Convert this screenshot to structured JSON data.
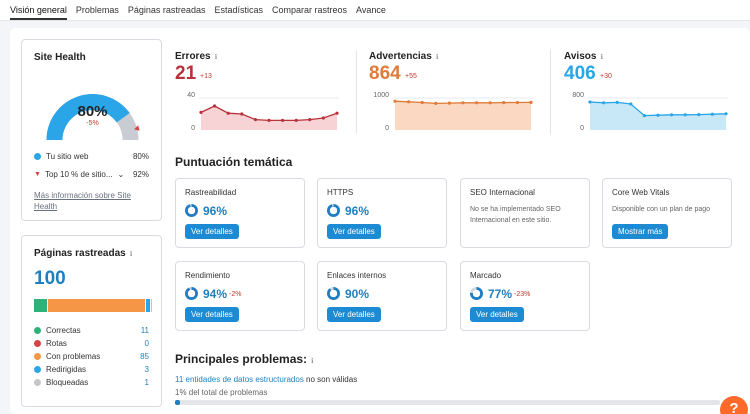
{
  "tabs": [
    "Visión general",
    "Problemas",
    "Páginas rastreadas",
    "Estadísticas",
    "Comparar rastreos",
    "Avance"
  ],
  "site_health": {
    "title": "Site Health",
    "score": "80%",
    "delta": "-5%",
    "score_fraction": 0.8,
    "top10_fraction": 0.92,
    "legend": [
      {
        "label": "Tu sitio web",
        "value": "80%",
        "color": "#2aa6e8"
      },
      {
        "label": "Top 10 % de sitio...",
        "value": "92%",
        "color": "#d64545"
      }
    ],
    "more_link": "Más información sobre Site Health"
  },
  "crawled": {
    "title": "Páginas rastreadas",
    "total": "100",
    "bar_fractions": [
      0.11,
      0.0,
      0.85,
      0.03,
      0.01
    ],
    "items": [
      {
        "label": "Correctas",
        "value": "11",
        "color": "#2db37a"
      },
      {
        "label": "Rotas",
        "value": "0",
        "color": "#d64545"
      },
      {
        "label": "Con problemas",
        "value": "85",
        "color": "#f49645"
      },
      {
        "label": "Redirigidas",
        "value": "3",
        "color": "#2aa6e8"
      },
      {
        "label": "Bloqueadas",
        "value": "1",
        "color": "#c4c6cc"
      }
    ]
  },
  "metrics": [
    {
      "label": "Errores",
      "value": "21",
      "delta": "+13",
      "color": "#b8323c",
      "fill": "#f7d3d6",
      "ymax": "40",
      "ymin": "0",
      "series": [
        22,
        30,
        21,
        20,
        13,
        12,
        12,
        12,
        13,
        15,
        21
      ]
    },
    {
      "label": "Advertencias",
      "value": "864",
      "delta": "+55",
      "color": "#e07b39",
      "fill": "#fbd8c1",
      "ymax": "1000",
      "ymin": "0",
      "series": [
        900,
        880,
        860,
        830,
        840,
        850,
        850,
        850,
        855,
        860,
        864
      ]
    },
    {
      "label": "Avisos",
      "value": "406",
      "delta": "+30",
      "color": "#2aa6e8",
      "fill": "#c8e8f7",
      "ymax": "800",
      "ymin": "0",
      "series": [
        700,
        680,
        690,
        650,
        360,
        370,
        380,
        380,
        385,
        395,
        406
      ]
    }
  ],
  "thematic_title": "Puntuación temática",
  "thematic": [
    {
      "title": "Rastreabilidad",
      "pct": "96%",
      "frac": 0.96,
      "delta": "",
      "desc": "",
      "button": "Ver detalles"
    },
    {
      "title": "HTTPS",
      "pct": "96%",
      "frac": 0.96,
      "delta": "",
      "desc": "",
      "button": "Ver detalles"
    },
    {
      "title": "SEO Internacional",
      "pct": "",
      "frac": 0,
      "delta": "",
      "desc": "No se ha implementado SEO Internacional en este sitio.",
      "button": ""
    },
    {
      "title": "Core Web Vitals",
      "pct": "",
      "frac": 0,
      "delta": "",
      "desc": "Disponible con un plan de pago",
      "button": "Mostrar más"
    },
    {
      "title": "Rendimiento",
      "pct": "94%",
      "frac": 0.94,
      "delta": "-2%",
      "desc": "",
      "button": "Ver detalles"
    },
    {
      "title": "Enlaces internos",
      "pct": "90%",
      "frac": 0.9,
      "delta": "",
      "desc": "",
      "button": "Ver detalles"
    },
    {
      "title": "Marcado",
      "pct": "77%",
      "frac": 0.77,
      "delta": "-23%",
      "desc": "",
      "button": "Ver detalles"
    }
  ],
  "issues": {
    "title": "Principales problemas:",
    "item_link": "11 entidades de datos estructurados",
    "item_rest": " no son válidas",
    "item_share": "1% del total de problemas",
    "share_fraction": 0.01
  },
  "help_label": "?"
}
